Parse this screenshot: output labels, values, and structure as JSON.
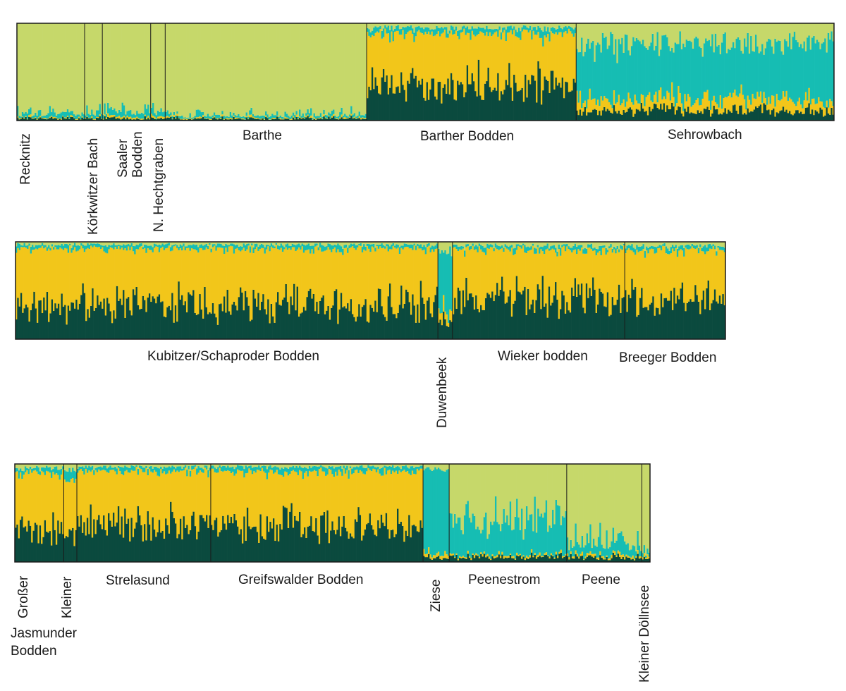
{
  "chart_data": {
    "type": "bar",
    "subtype": "stacked-admixture-proportion",
    "ylim": [
      0,
      1
    ],
    "grid": false,
    "legend": "none",
    "clusters": [
      {
        "name": "cluster-1",
        "color": "#c6d86a"
      },
      {
        "name": "cluster-2",
        "color": "#16bdb3"
      },
      {
        "name": "cluster-3",
        "color": "#f2c61a"
      },
      {
        "name": "cluster-4",
        "color": "#0b4a3e"
      }
    ],
    "panels": [
      {
        "id": "panel-1",
        "populations": [
          {
            "label": "Recknitz",
            "n": 42,
            "mean": [
              0.93,
              0.04,
              0.01,
              0.02
            ]
          },
          {
            "label": "Körkwitzer Bach",
            "n": 11,
            "mean": [
              0.92,
              0.05,
              0.01,
              0.02
            ]
          },
          {
            "label": "Saaler Bodden",
            "n": 30,
            "mean": [
              0.9,
              0.06,
              0.02,
              0.02
            ]
          },
          {
            "label": "N. Hechtgraben",
            "n": 9,
            "mean": [
              0.91,
              0.05,
              0.02,
              0.02
            ]
          },
          {
            "label": "Barthe",
            "n": 125,
            "mean": [
              0.94,
              0.03,
              0.01,
              0.02
            ]
          },
          {
            "label": "Barther Bodden",
            "n": 130,
            "mean": [
              0.05,
              0.06,
              0.52,
              0.37
            ]
          },
          {
            "label": "Sehrowbach",
            "n": 160,
            "mean": [
              0.2,
              0.58,
              0.12,
              0.1
            ]
          }
        ]
      },
      {
        "id": "panel-2",
        "populations": [
          {
            "label": "Kubitzer/Schaproder Bodden",
            "n": 260,
            "mean": [
              0.03,
              0.04,
              0.58,
              0.35
            ]
          },
          {
            "label": "Duwenbeek",
            "n": 9,
            "mean": [
              0.1,
              0.62,
              0.1,
              0.18
            ]
          },
          {
            "label": "Wieker bodden",
            "n": 106,
            "mean": [
              0.04,
              0.04,
              0.5,
              0.42
            ]
          },
          {
            "label": "Breeger Bodden",
            "n": 62,
            "mean": [
              0.04,
              0.04,
              0.52,
              0.4
            ]
          }
        ]
      },
      {
        "id": "panel-3",
        "populations": [
          {
            "label": "Großer Jasmunder Bodden",
            "n": 30,
            "mean": [
              0.04,
              0.05,
              0.58,
              0.33
            ]
          },
          {
            "label": "Kleiner",
            "n": 8,
            "mean": [
              0.06,
              0.1,
              0.5,
              0.34
            ]
          },
          {
            "label": "Strelasund",
            "n": 82,
            "mean": [
              0.03,
              0.04,
              0.55,
              0.38
            ]
          },
          {
            "label": "Greifswalder Bodden",
            "n": 130,
            "mean": [
              0.03,
              0.05,
              0.57,
              0.35
            ]
          },
          {
            "label": "Ziese",
            "n": 16,
            "mean": [
              0.05,
              0.86,
              0.04,
              0.05
            ]
          },
          {
            "label": "Peenestrom",
            "n": 72,
            "mean": [
              0.55,
              0.38,
              0.02,
              0.05
            ]
          },
          {
            "label": "Peene",
            "n": 46,
            "mean": [
              0.82,
              0.12,
              0.02,
              0.04
            ]
          },
          {
            "label": "Kleiner Döllnsee",
            "n": 5,
            "mean": [
              0.88,
              0.06,
              0.02,
              0.04
            ]
          }
        ]
      }
    ],
    "labels": {
      "recknitz": "Recknitz",
      "koerkwitzer_bach": "Körkwitzer Bach",
      "saaler": "Saaler",
      "bodden": "Bodden",
      "n_hechtgraben": "N. Hechtgraben",
      "barthe": "Barthe",
      "barther_bodden": "Barther Bodden",
      "sehrowbach": "Sehrowbach",
      "kubitzer": "Kubitzer/Schaproder Bodden",
      "duwenbeek": "Duwenbeek",
      "wieker": "Wieker bodden",
      "breeger": "Breeger Bodden",
      "grosser": "Großer",
      "jasmunder": "Jasmunder",
      "jasmunder_bodden": "Bodden",
      "kleiner": "Kleiner",
      "strelasund": "Strelasund",
      "greifswalder": "Greifswalder Bodden",
      "ziese": "Ziese",
      "peenestrom": "Peenestrom",
      "peene": "Peene",
      "kleiner_doellnsee": "Kleiner Döllnsee"
    }
  }
}
